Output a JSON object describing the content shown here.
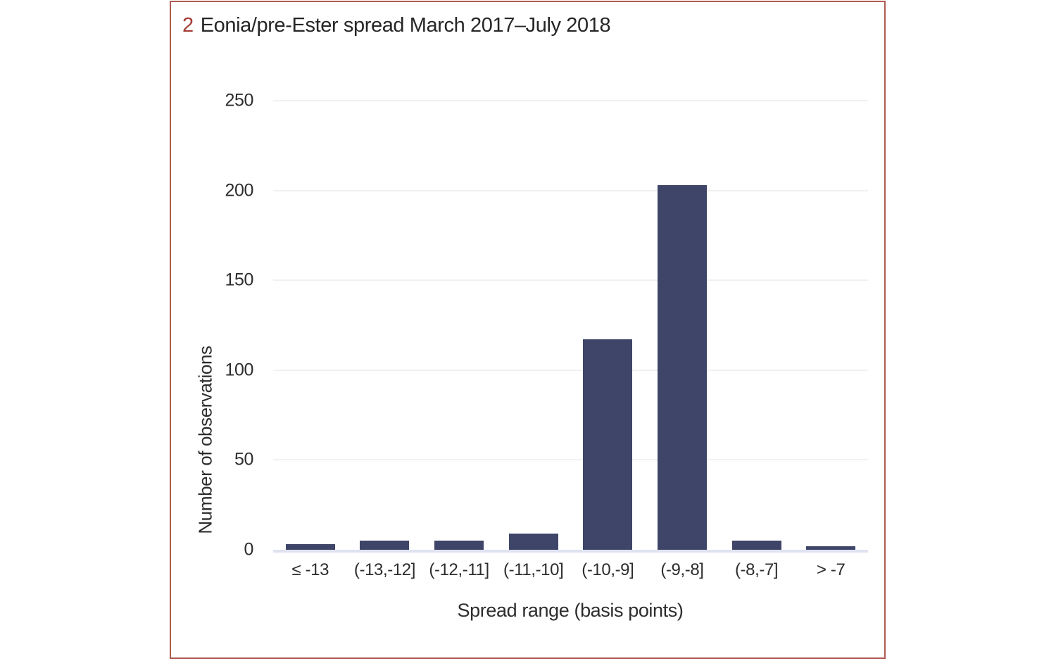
{
  "frame": {
    "border_color": "#b15b52"
  },
  "title": {
    "number": "2",
    "number_color": "#a53c34",
    "text": "Eonia/pre-Ester spread March 2017–July 2018"
  },
  "chart_data": {
    "type": "bar",
    "title": "Eonia/pre-Ester spread March 2017–July 2018",
    "categories": [
      "≤ -13",
      "(-13,-12]",
      "(-12,-11]",
      "(-11,-10]",
      "(-10,-9]",
      "(-9,-8]",
      "(-8,-7]",
      "> -7"
    ],
    "values": [
      3,
      5,
      5,
      9,
      117,
      203,
      5,
      2
    ],
    "xlabel": "Spread range (basis points)",
    "ylabel": "Number of observations",
    "ylim": [
      0,
      250
    ],
    "yticks": [
      0,
      50,
      100,
      150,
      200,
      250
    ],
    "grid": "horizontal",
    "legend": "none",
    "bar_color": "#3e4568",
    "gridline_color": "#f1f1f1",
    "axis_line_color": "#dfe2f0"
  }
}
